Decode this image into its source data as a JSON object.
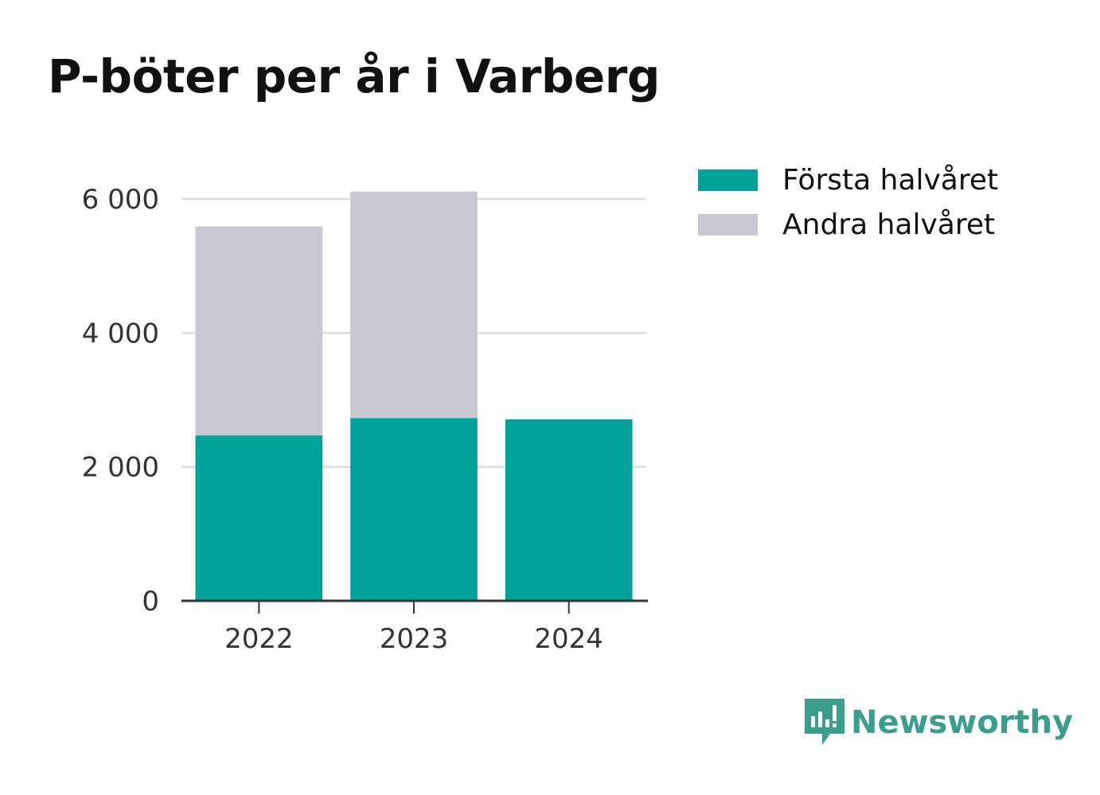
{
  "title": "P-böter per år i Varberg",
  "brand": {
    "name": "Newsworthy",
    "icon": "newsworthy-logo-icon",
    "color": "#3a9e8f"
  },
  "colors": {
    "first_half": "#00a39a",
    "second_half": "#c8c7d2",
    "grid": "#e0e0e0",
    "axis": "#333333"
  },
  "chart_data": {
    "type": "bar",
    "stacked": true,
    "title": "P-böter per år i Varberg",
    "categories": [
      "2022",
      "2023",
      "2024"
    ],
    "series": [
      {
        "name": "Första halvåret",
        "values": [
          2470,
          2730,
          2710
        ],
        "color": "#00a39a"
      },
      {
        "name": "Andra halvåret",
        "values": [
          3120,
          3380,
          0
        ],
        "color": "#c8c7d2"
      }
    ],
    "yticks": [
      0,
      2000,
      4000,
      6000
    ],
    "ytick_labels": [
      "0",
      "2 000",
      "4 000",
      "6 000"
    ],
    "ylim": [
      0,
      6000
    ],
    "grid": true,
    "legend": "right",
    "xlabel": "",
    "ylabel": ""
  }
}
